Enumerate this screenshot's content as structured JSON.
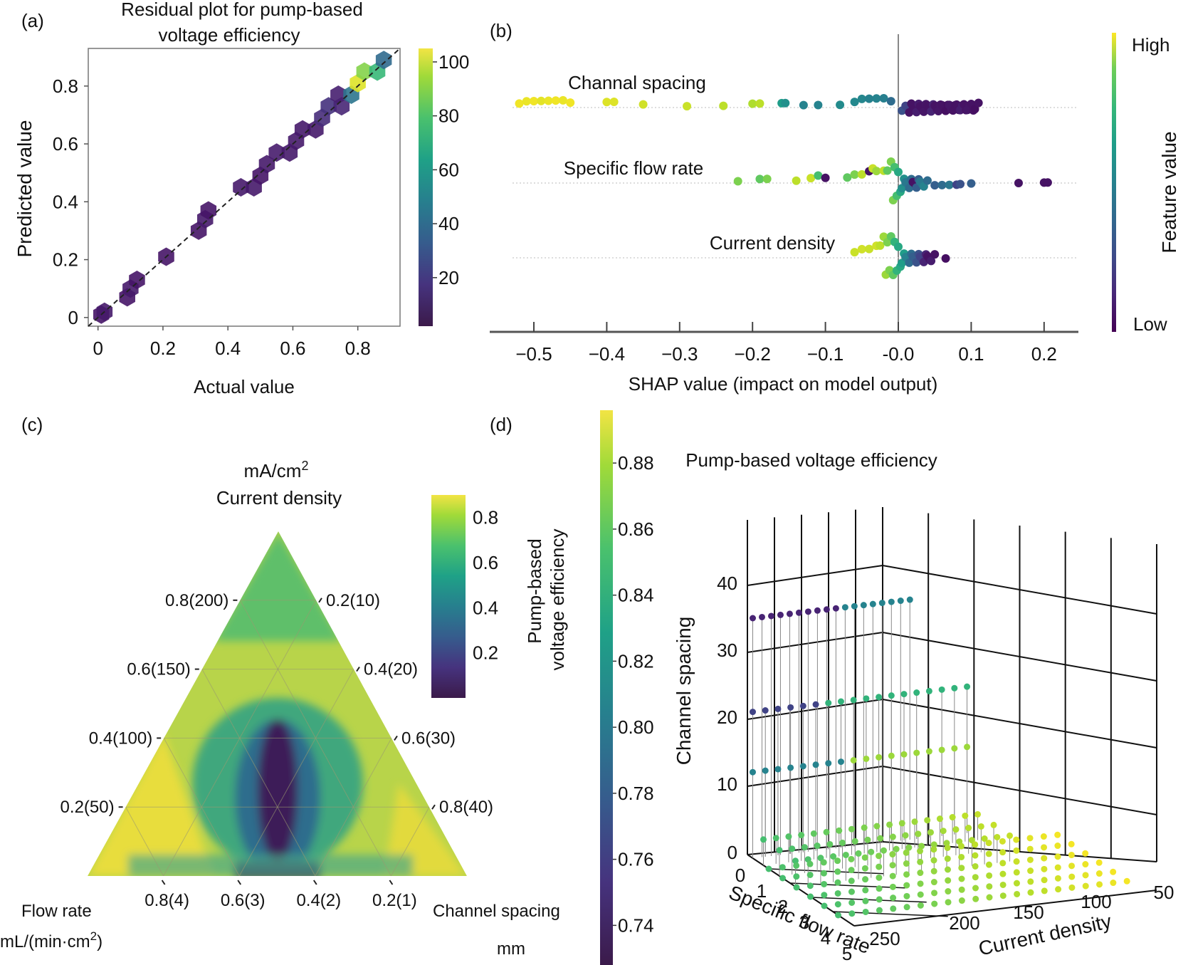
{
  "chart_data": [
    {
      "panel": "(a)",
      "type": "hexbin",
      "title": "Residual plot for pump-based voltage efficiency",
      "xlabel": "Actual value",
      "ylabel": "Predicted value",
      "xlim": [
        -0.03,
        0.93
      ],
      "ylim": [
        -0.03,
        0.93
      ],
      "xticks": [
        "0",
        "0.2",
        "0.4",
        "0.6",
        "0.8"
      ],
      "yticks": [
        "0",
        "0.2",
        "0.4",
        "0.6",
        "0.8"
      ],
      "diagonal": "y = x (dashed)",
      "colorbar": {
        "ticks": [
          "20",
          "40",
          "60",
          "80",
          "100"
        ],
        "range": [
          2,
          105
        ],
        "colormap": "viridis"
      },
      "bins": [
        {
          "x": 0.01,
          "y": 0.01,
          "count": 5
        },
        {
          "x": 0.02,
          "y": 0.02,
          "count": 6
        },
        {
          "x": 0.09,
          "y": 0.07,
          "count": 5
        },
        {
          "x": 0.1,
          "y": 0.1,
          "count": 6
        },
        {
          "x": 0.12,
          "y": 0.13,
          "count": 5
        },
        {
          "x": 0.21,
          "y": 0.21,
          "count": 5
        },
        {
          "x": 0.31,
          "y": 0.3,
          "count": 5
        },
        {
          "x": 0.33,
          "y": 0.34,
          "count": 6
        },
        {
          "x": 0.34,
          "y": 0.37,
          "count": 5
        },
        {
          "x": 0.44,
          "y": 0.45,
          "count": 6
        },
        {
          "x": 0.48,
          "y": 0.45,
          "count": 6
        },
        {
          "x": 0.5,
          "y": 0.49,
          "count": 5
        },
        {
          "x": 0.52,
          "y": 0.53,
          "count": 6
        },
        {
          "x": 0.55,
          "y": 0.57,
          "count": 7
        },
        {
          "x": 0.59,
          "y": 0.57,
          "count": 6
        },
        {
          "x": 0.61,
          "y": 0.61,
          "count": 6
        },
        {
          "x": 0.63,
          "y": 0.65,
          "count": 6
        },
        {
          "x": 0.67,
          "y": 0.65,
          "count": 6
        },
        {
          "x": 0.69,
          "y": 0.69,
          "count": 12
        },
        {
          "x": 0.71,
          "y": 0.73,
          "count": 14
        },
        {
          "x": 0.75,
          "y": 0.73,
          "count": 10
        },
        {
          "x": 0.74,
          "y": 0.77,
          "count": 8
        },
        {
          "x": 0.78,
          "y": 0.77,
          "count": 40
        },
        {
          "x": 0.8,
          "y": 0.81,
          "count": 100
        },
        {
          "x": 0.82,
          "y": 0.85,
          "count": 85
        },
        {
          "x": 0.86,
          "y": 0.85,
          "count": 70
        },
        {
          "x": 0.88,
          "y": 0.89,
          "count": 35
        }
      ]
    },
    {
      "panel": "(b)",
      "type": "scatter",
      "subtype": "shap-beeswarm",
      "xlabel": "SHAP value (impact on model output)",
      "xlim": [
        -0.56,
        0.24
      ],
      "xticks": [
        "−0.5",
        "−0.4",
        "−0.3",
        "−0.2",
        "−0.1",
        "-0.0",
        "0.1",
        "0.2"
      ],
      "colorbar": {
        "label": "Feature value",
        "high": "High",
        "low": "Low",
        "colormap": "viridis"
      },
      "features": [
        {
          "name": "Channal spacing",
          "points": [
            [
              -0.52,
              0.98
            ],
            [
              -0.51,
              0.97
            ],
            [
              -0.5,
              0.98
            ],
            [
              -0.49,
              0.96
            ],
            [
              -0.48,
              0.97
            ],
            [
              -0.47,
              0.98
            ],
            [
              -0.46,
              0.97
            ],
            [
              -0.45,
              0.98
            ],
            [
              -0.4,
              0.95
            ],
            [
              -0.39,
              0.95
            ],
            [
              -0.35,
              0.93
            ],
            [
              -0.29,
              0.92
            ],
            [
              -0.24,
              0.9
            ],
            [
              -0.2,
              0.88
            ],
            [
              -0.19,
              0.9
            ],
            [
              -0.16,
              0.55
            ],
            [
              -0.155,
              0.5
            ],
            [
              -0.13,
              0.45
            ],
            [
              -0.11,
              0.45
            ],
            [
              -0.08,
              0.48
            ],
            [
              -0.06,
              0.47
            ],
            [
              -0.05,
              0.46
            ],
            [
              -0.04,
              0.44
            ],
            [
              -0.03,
              0.45
            ],
            [
              -0.02,
              0.43
            ],
            [
              -0.01,
              0.35
            ],
            [
              0.005,
              0.25
            ],
            [
              0.01,
              0.2
            ],
            [
              0.015,
              0.05
            ],
            [
              0.02,
              0.05
            ],
            [
              0.025,
              0.08
            ],
            [
              0.03,
              0.05
            ],
            [
              0.035,
              0.06
            ],
            [
              0.04,
              0.05
            ],
            [
              0.045,
              0.1
            ],
            [
              0.05,
              0.05
            ],
            [
              0.055,
              0.06
            ],
            [
              0.06,
              0.05
            ],
            [
              0.065,
              0.04
            ],
            [
              0.07,
              0.06
            ],
            [
              0.075,
              0.05
            ],
            [
              0.08,
              0.05
            ],
            [
              0.085,
              0.08
            ],
            [
              0.09,
              0.05
            ],
            [
              0.095,
              0.06
            ],
            [
              0.1,
              0.05
            ],
            [
              0.105,
              0.04
            ],
            [
              0.11,
              0.05
            ]
          ]
        },
        {
          "name": "Specific  flow  rate",
          "points": [
            [
              -0.22,
              0.8
            ],
            [
              -0.19,
              0.75
            ],
            [
              -0.18,
              0.8
            ],
            [
              -0.14,
              0.9
            ],
            [
              -0.12,
              0.92
            ],
            [
              -0.11,
              0.7
            ],
            [
              -0.1,
              0.05
            ],
            [
              -0.07,
              0.75
            ],
            [
              -0.06,
              0.8
            ],
            [
              -0.05,
              0.9
            ],
            [
              -0.04,
              0.05
            ],
            [
              -0.035,
              0.92
            ],
            [
              -0.03,
              0.85
            ],
            [
              -0.02,
              0.9
            ],
            [
              -0.015,
              0.75
            ],
            [
              -0.01,
              0.8
            ],
            [
              -0.005,
              0.7
            ],
            [
              0.0,
              0.6
            ],
            [
              0.005,
              0.5
            ],
            [
              0.01,
              0.4
            ],
            [
              0.015,
              0.35
            ],
            [
              0.02,
              0.05
            ],
            [
              0.025,
              0.3
            ],
            [
              0.03,
              0.4
            ],
            [
              0.035,
              0.45
            ],
            [
              0.04,
              0.35
            ],
            [
              0.05,
              0.3
            ],
            [
              0.06,
              0.35
            ],
            [
              0.07,
              0.4
            ],
            [
              0.08,
              0.2
            ],
            [
              0.085,
              0.25
            ],
            [
              0.1,
              0.3
            ],
            [
              0.165,
              0.05
            ],
            [
              0.2,
              0.05
            ],
            [
              0.205,
              0.05
            ]
          ]
        },
        {
          "name": "Current density",
          "points": [
            [
              -0.06,
              0.92
            ],
            [
              -0.05,
              0.93
            ],
            [
              -0.04,
              0.92
            ],
            [
              -0.03,
              0.93
            ],
            [
              -0.025,
              0.9
            ],
            [
              -0.02,
              0.85
            ],
            [
              -0.015,
              0.8
            ],
            [
              -0.01,
              0.75
            ],
            [
              -0.005,
              0.65
            ],
            [
              0.0,
              0.6
            ],
            [
              0.005,
              0.55
            ],
            [
              0.01,
              0.45
            ],
            [
              0.015,
              0.35
            ],
            [
              0.02,
              0.3
            ],
            [
              0.025,
              0.25
            ],
            [
              0.03,
              0.2
            ],
            [
              0.035,
              0.1
            ],
            [
              0.04,
              0.05
            ],
            [
              0.045,
              0.08
            ],
            [
              0.05,
              0.05
            ],
            [
              0.065,
              0.04
            ]
          ]
        }
      ]
    },
    {
      "panel": "(c)",
      "type": "heatmap",
      "subtype": "ternary",
      "top_axis": {
        "label": "Current density",
        "unit": "mA/cm²",
        "ticks": [
          "0.8(200)",
          "0.6(150)",
          "0.4(100)",
          "0.2(50)"
        ]
      },
      "right_axis": {
        "label": "Channel spacing",
        "unit": "mm",
        "ticks": [
          "0.2(10)",
          "0.4(20)",
          "0.6(30)",
          "0.8(40)"
        ]
      },
      "bottom_axis": {
        "label": "Flow rate",
        "unit": "mL/(min·cm²)",
        "ticks": [
          "0.8(4)",
          "0.6(3)",
          "0.4(2)",
          "0.2(1)"
        ]
      },
      "colorbar": {
        "label": "Pump-based voltage efficiency",
        "ticks": [
          "0.2",
          "0.4",
          "0.6",
          "0.8"
        ],
        "range": [
          0.0,
          0.9
        ],
        "colormap": "viridis"
      }
    },
    {
      "panel": "(d)",
      "type": "scatter",
      "subtype": "3d-stem",
      "title": "Pump-based  voltage efficiency",
      "xlabel": "Specific flow rate",
      "ylabel": "Current density",
      "zlabel": "Channel spacing",
      "xticks": [
        "0",
        "1",
        "2",
        "3",
        "4",
        "5"
      ],
      "yticks": [
        "250",
        "200",
        "150",
        "100",
        "50"
      ],
      "zticks": [
        "0",
        "10",
        "20",
        "30",
        "40"
      ],
      "colorbar": {
        "ticks": [
          "0.74",
          "0.76",
          "0.78",
          "0.80",
          "0.82",
          "0.84",
          "0.86",
          "0.88"
        ],
        "range": [
          0.728,
          0.896
        ],
        "colormap": "viridis"
      },
      "layers": [
        {
          "channel_spacing": 35,
          "efficiency_range": [
            0.745,
            0.8
          ]
        },
        {
          "channel_spacing": 21,
          "efficiency_range": [
            0.76,
            0.835
          ]
        },
        {
          "channel_spacing": 12,
          "efficiency_range": [
            0.79,
            0.87
          ]
        },
        {
          "channel_spacing": 3,
          "efficiency_range": [
            0.82,
            0.89
          ]
        },
        {
          "channel_spacing": 0,
          "efficiency_range": [
            0.83,
            0.89
          ]
        }
      ]
    }
  ],
  "labels": {
    "panel_a": "(a)",
    "panel_b": "(b)",
    "panel_c": "(c)",
    "panel_d": "(d)",
    "a_title_1": "Residual plot for pump-based",
    "a_title_2": "voltage efficiency",
    "c_top_unit": "mA/cm",
    "c_top_unit_sup": "2",
    "c_top_label": "Current density",
    "c_flow_label": "Flow rate",
    "c_flow_unit": "mL/(min·cm",
    "c_flow_unit_sup": "2",
    "c_flow_unit_end": ")",
    "c_spacing_label": "Channel spacing",
    "c_spacing_unit": "mm",
    "c_cbar_label_1": "Pump-based",
    "c_cbar_label_2": "voltage efficiency"
  }
}
